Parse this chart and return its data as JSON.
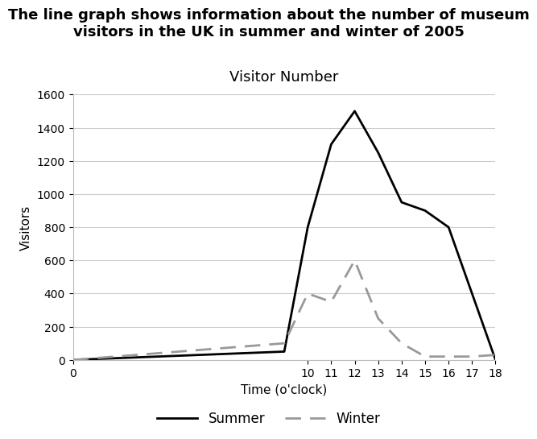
{
  "title": "The line graph shows information about the number of museum\nvisitors in the UK in summer and winter of 2005",
  "subtitle": "Visitor Number",
  "xlabel": "Time (o'clock)",
  "ylabel": "Visitors",
  "xlim": [
    0,
    18
  ],
  "ylim": [
    0,
    1600
  ],
  "xticks": [
    0,
    10,
    11,
    12,
    13,
    14,
    15,
    16,
    17,
    18
  ],
  "yticks": [
    0,
    200,
    400,
    600,
    800,
    1000,
    1200,
    1400,
    1600
  ],
  "summer_x": [
    0,
    9,
    10,
    11,
    12,
    13,
    14,
    15,
    16,
    17,
    18
  ],
  "summer_y": [
    0,
    50,
    800,
    1300,
    1500,
    1250,
    950,
    900,
    800,
    400,
    0
  ],
  "winter_x": [
    0,
    9,
    10,
    11,
    12,
    13,
    14,
    15,
    16,
    17,
    18
  ],
  "winter_y": [
    0,
    100,
    400,
    350,
    600,
    250,
    100,
    20,
    20,
    20,
    30
  ],
  "summer_color": "#000000",
  "winter_color": "#999999",
  "background_color": "#ffffff",
  "grid_color": "#cccccc",
  "title_fontsize": 13,
  "title_fontweight": "bold",
  "subtitle_fontsize": 13,
  "label_fontsize": 11,
  "tick_fontsize": 10,
  "legend_fontsize": 12
}
